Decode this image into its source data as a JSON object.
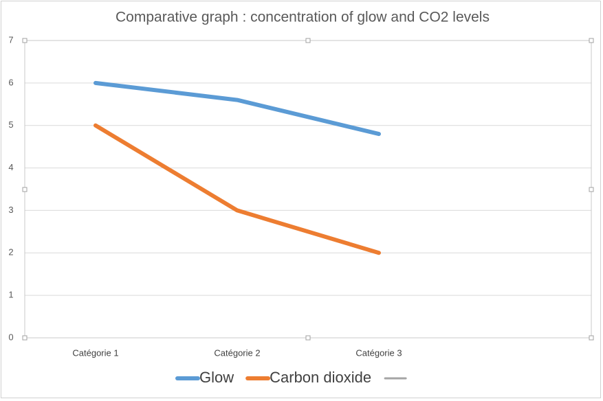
{
  "chart_data": {
    "type": "line",
    "title": "Comparative graph : concentration of glow and CO2 levels",
    "categories": [
      "Catégorie 1",
      "Catégorie 2",
      "Catégorie 3",
      null
    ],
    "series": [
      {
        "name": "Glow",
        "color": "#5b9bd5",
        "values": [
          6,
          5.6,
          4.8,
          null
        ]
      },
      {
        "name": "Carbon dioxide",
        "color": "#ed7d31",
        "values": [
          5,
          3,
          2,
          null
        ]
      },
      {
        "name": null,
        "color": "#a5a5a5",
        "values": [
          null,
          null,
          null,
          null
        ]
      }
    ],
    "ylim": [
      0,
      7
    ],
    "yticks": [
      0,
      1,
      2,
      3,
      4,
      5,
      6,
      7
    ],
    "grid": true,
    "legend": "bottom"
  }
}
